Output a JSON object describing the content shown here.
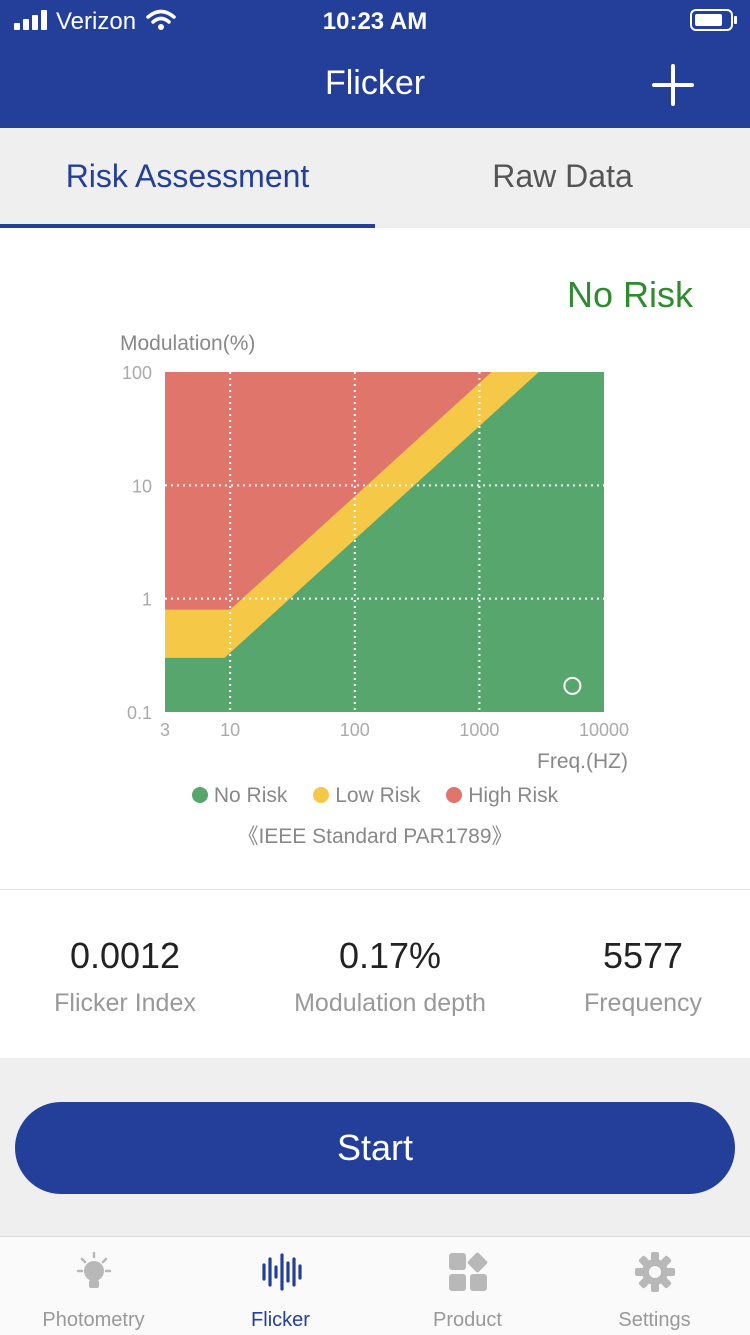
{
  "status_bar": {
    "carrier": "Verizon",
    "time": "10:23 AM"
  },
  "nav": {
    "title": "Flicker"
  },
  "tabs": [
    {
      "label": "Risk Assessment",
      "active": true
    },
    {
      "label": "Raw Data",
      "active": false
    }
  ],
  "risk_status": "No Risk",
  "chart_data": {
    "type": "area",
    "ylabel": "Modulation(%)",
    "xlabel": "Freq.(HZ)",
    "x_scale": "log",
    "y_scale": "log",
    "xlim": [
      3,
      10000
    ],
    "ylim": [
      0.1,
      100
    ],
    "x_ticks": [
      "3",
      "10",
      "100",
      "1000",
      "10000"
    ],
    "y_ticks": [
      "100",
      "10",
      "1",
      "0.1"
    ],
    "regions": [
      {
        "name": "No Risk",
        "color": "#56a66e",
        "upper_boundary": [
          [
            3,
            0.3
          ],
          [
            9,
            0.3
          ],
          [
            3000,
            100
          ]
        ]
      },
      {
        "name": "Low Risk",
        "color": "#f5c947",
        "upper_boundary": [
          [
            3,
            0.8
          ],
          [
            10,
            0.8
          ],
          [
            1250,
            100
          ]
        ]
      },
      {
        "name": "High Risk",
        "color": "#e0756b",
        "upper_boundary": [
          [
            3,
            100
          ],
          [
            10000,
            100
          ]
        ]
      }
    ],
    "measurement": {
      "x": 5577,
      "y": 0.17
    },
    "grid": true
  },
  "legend": [
    {
      "label": "No Risk",
      "color": "#56a66e"
    },
    {
      "label": "Low Risk",
      "color": "#f5c947"
    },
    {
      "label": "High Risk",
      "color": "#e0756b"
    }
  ],
  "standard": "《IEEE Standard PAR1789》",
  "metrics": [
    {
      "value": "0.0012",
      "label": "Flicker Index"
    },
    {
      "value": "0.17%",
      "label": "Modulation depth"
    },
    {
      "value": "5577",
      "label": "Frequency"
    }
  ],
  "start_button": "Start",
  "tabbar": [
    {
      "label": "Photometry",
      "icon": "bulb-icon",
      "active": false
    },
    {
      "label": "Flicker",
      "icon": "waveform-icon",
      "active": true
    },
    {
      "label": "Product",
      "icon": "grid-icon",
      "active": false
    },
    {
      "label": "Settings",
      "icon": "gear-icon",
      "active": false
    }
  ]
}
